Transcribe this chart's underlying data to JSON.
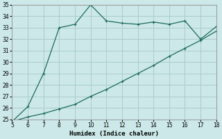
{
  "xlabel": "Humidex (Indice chaleur)",
  "background_color": "#cce8e8",
  "grid_color": "#aacccc",
  "line_color": "#1a6b5a",
  "xlim": [
    5,
    18
  ],
  "ylim": [
    25,
    35
  ],
  "xticks": [
    5,
    6,
    7,
    8,
    9,
    10,
    11,
    12,
    13,
    14,
    15,
    16,
    17,
    18
  ],
  "yticks": [
    25,
    26,
    27,
    28,
    29,
    30,
    31,
    32,
    33,
    34,
    35
  ],
  "line1_x": [
    5,
    6,
    7,
    8,
    9,
    10,
    11,
    12,
    13,
    14,
    15,
    16,
    17,
    18
  ],
  "line1_y": [
    24.8,
    26.1,
    29.0,
    33.0,
    33.3,
    35.0,
    33.6,
    33.4,
    33.3,
    33.5,
    33.3,
    33.6,
    32.0,
    33.1
  ],
  "line2_x": [
    5,
    6,
    7,
    8,
    9,
    10,
    11,
    12,
    13,
    14,
    15,
    16,
    17,
    18
  ],
  "line2_y": [
    24.8,
    25.2,
    25.5,
    25.9,
    26.3,
    27.0,
    27.6,
    28.3,
    29.0,
    29.7,
    30.5,
    31.2,
    31.9,
    32.7
  ]
}
